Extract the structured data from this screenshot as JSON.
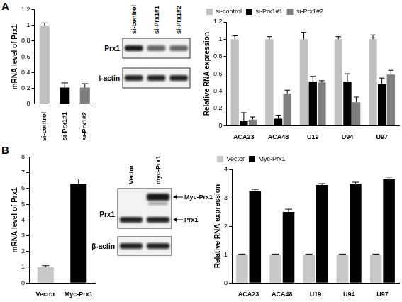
{
  "panel_labels": [
    "A",
    "B"
  ],
  "chart_data": [
    {
      "type": "bar",
      "y_label": "mRNA level of Prx1",
      "categories": [
        "si-control",
        "si-Prx1#1",
        "si-Prx1#2"
      ],
      "values": [
        1.0,
        0.21,
        0.21
      ],
      "errors": [
        0.03,
        0.06,
        0.05
      ],
      "colors": [
        "#c0c0c0",
        "#000000",
        "#7f7f7f"
      ],
      "ylim": [
        0,
        1.2
      ],
      "yticks": [
        0,
        0.2,
        0.4,
        0.6,
        0.8,
        1,
        1.2
      ],
      "grid": false
    },
    {
      "type": "bar",
      "y_label": "Relative RNA expression",
      "categories": [
        "ACA23",
        "ACA48",
        "U19",
        "U94",
        "U97"
      ],
      "series": [
        {
          "name": "si-control",
          "color": "#c0c0c0",
          "values": [
            1,
            1,
            1,
            1,
            1
          ],
          "errors": [
            0.04,
            0.03,
            0.08,
            0.03,
            0.05
          ]
        },
        {
          "name": "si-Prx1#1",
          "color": "#000000",
          "values": [
            0.05,
            0.08,
            0.51,
            0.51,
            0.48
          ],
          "errors": [
            0.1,
            0.04,
            0.06,
            0.09,
            0.07
          ]
        },
        {
          "name": "si-Prx1#2",
          "color": "#7f7f7f",
          "values": [
            0.07,
            0.37,
            0.5,
            0.27,
            0.59
          ],
          "errors": [
            0.03,
            0.04,
            0.02,
            0.06,
            0.05
          ]
        }
      ],
      "ylim": [
        0,
        1.2
      ],
      "yticks": [
        0,
        0.2,
        0.4,
        0.6,
        0.8,
        1,
        1.2
      ],
      "grid": false,
      "legend": "upper left"
    },
    {
      "type": "bar",
      "y_label": "mRNA level of Prx1",
      "categories": [
        "Vector",
        "Myc-Prx1"
      ],
      "values": [
        1,
        6.3
      ],
      "errors": [
        0.1,
        0.3
      ],
      "colors": [
        "#c8c8c8",
        "#000000"
      ],
      "ylim": [
        0,
        8
      ],
      "yticks": [
        0,
        1,
        2,
        3,
        4,
        5,
        6,
        7,
        8
      ],
      "grid": false
    },
    {
      "type": "bar",
      "y_label": "Relative RNA expression",
      "categories": [
        "ACA23",
        "ACA48",
        "U19",
        "U94",
        "U97"
      ],
      "series": [
        {
          "name": "Vector",
          "color": "#c8c8c8",
          "values": [
            1,
            1,
            1,
            1,
            1
          ],
          "errors": [
            0.02,
            0.02,
            0.02,
            0.02,
            0.02
          ]
        },
        {
          "name": "Myc-Prx1",
          "color": "#000000",
          "values": [
            3.25,
            2.5,
            3.45,
            3.5,
            3.65
          ],
          "errors": [
            0.05,
            0.1,
            0.05,
            0.05,
            0.08
          ]
        }
      ],
      "ylim": [
        0,
        4
      ],
      "yticks": [
        0,
        1,
        2,
        3,
        4
      ],
      "grid": false,
      "legend": "upper left"
    }
  ],
  "blots": [
    {
      "lanes": [
        "si-control",
        "si-Prx1#1",
        "si-Prx1#2"
      ],
      "rows": [
        "Prx1",
        "β-actin"
      ]
    },
    {
      "lanes": [
        "Vector",
        "myc-Prx1"
      ],
      "rows": [
        "Prx1",
        "β-actin"
      ],
      "arrows": [
        "Myc-Prx1",
        "Prx1"
      ]
    }
  ]
}
